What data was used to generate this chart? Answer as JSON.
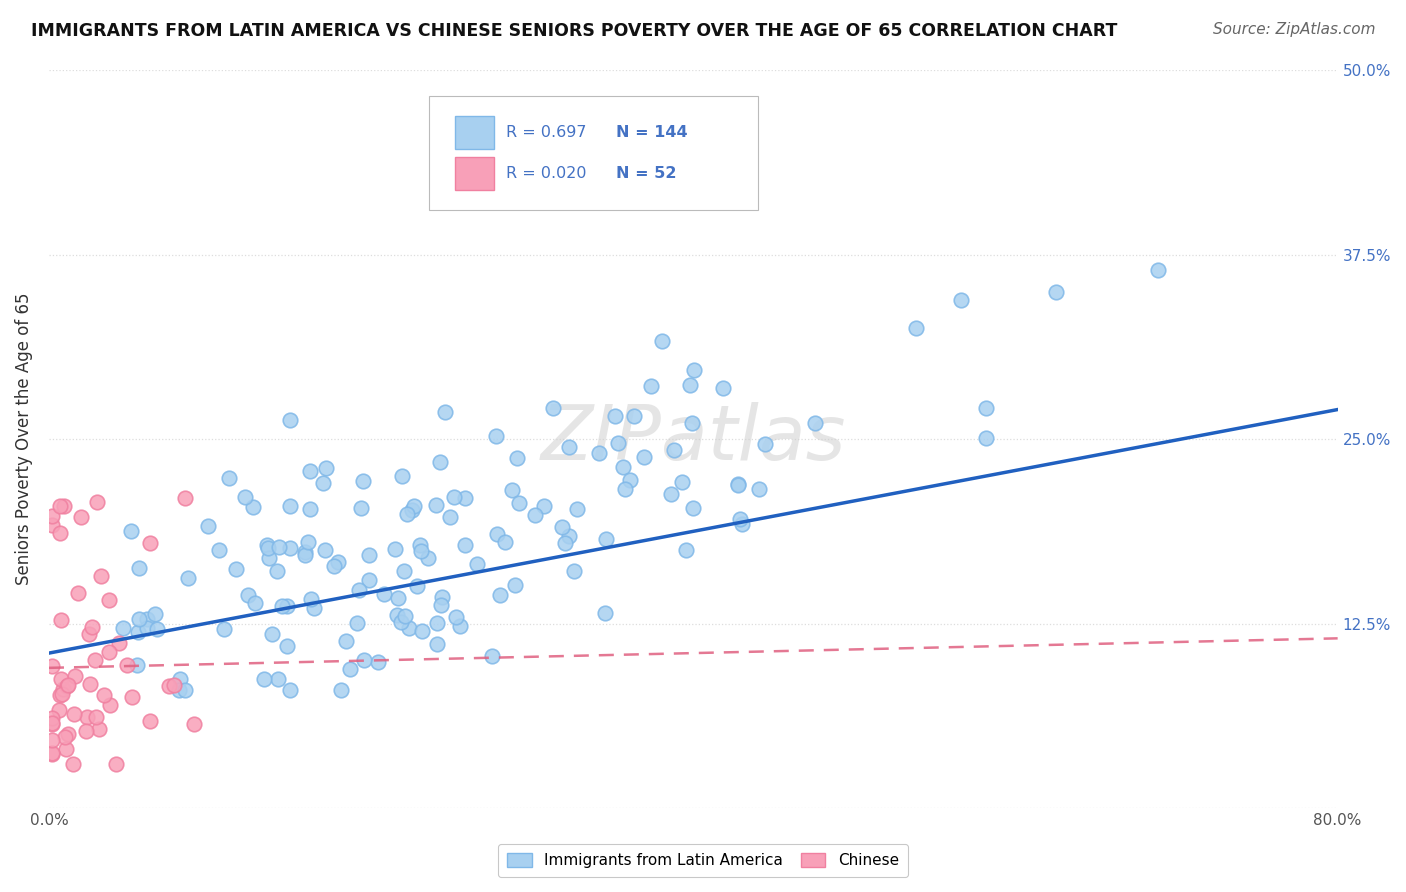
{
  "title": "IMMIGRANTS FROM LATIN AMERICA VS CHINESE SENIORS POVERTY OVER THE AGE OF 65 CORRELATION CHART",
  "source": "Source: ZipAtlas.com",
  "ylabel": "Seniors Poverty Over the Age of 65",
  "xlim": [
    0.0,
    0.8
  ],
  "ylim": [
    0.0,
    0.5
  ],
  "R_blue": 0.697,
  "N_blue": 144,
  "R_pink": 0.02,
  "N_pink": 52,
  "blue_color_face": "#A8D0F0",
  "blue_color_edge": "#80B8E8",
  "pink_color_face": "#F8A0B8",
  "pink_color_edge": "#F080A0",
  "blue_line_color": "#2060C0",
  "pink_line_color": "#E06080",
  "watermark": "ZIPatlas",
  "background_color": "#FFFFFF",
  "grid_color": "#DDDDDD",
  "legend_label_blue": "Immigrants from Latin America",
  "legend_label_pink": "Chinese",
  "axis_label_color": "#4472C4",
  "text_color": "#333333",
  "figsize": [
    14.06,
    8.92
  ],
  "dpi": 100
}
